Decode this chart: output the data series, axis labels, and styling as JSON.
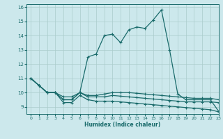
{
  "xlabel": "Humidex (Indice chaleur)",
  "bg_color": "#cce8ec",
  "grid_color": "#aacccc",
  "line_color": "#1a6b6b",
  "xlim": [
    -0.5,
    23
  ],
  "ylim": [
    8.5,
    16.2
  ],
  "xticks": [
    0,
    1,
    2,
    3,
    4,
    5,
    6,
    7,
    8,
    9,
    10,
    11,
    12,
    13,
    14,
    15,
    16,
    17,
    18,
    19,
    20,
    21,
    22,
    23
  ],
  "yticks": [
    9,
    10,
    11,
    12,
    13,
    14,
    15,
    16
  ],
  "series": [
    [
      11.0,
      10.5,
      10.0,
      10.0,
      9.5,
      9.5,
      10.0,
      12.5,
      12.7,
      14.0,
      14.1,
      13.5,
      14.4,
      14.6,
      14.5,
      15.1,
      15.8,
      13.0,
      9.9,
      9.5,
      9.5,
      9.5,
      9.5,
      8.7
    ],
    [
      11.0,
      10.5,
      10.0,
      10.0,
      9.7,
      9.7,
      10.0,
      9.8,
      9.8,
      9.9,
      10.0,
      10.0,
      10.0,
      9.95,
      9.9,
      9.85,
      9.8,
      9.75,
      9.7,
      9.65,
      9.6,
      9.6,
      9.6,
      9.5
    ],
    [
      11.0,
      10.5,
      10.0,
      10.0,
      9.5,
      9.5,
      10.0,
      9.7,
      9.7,
      9.7,
      9.8,
      9.75,
      9.7,
      9.65,
      9.6,
      9.55,
      9.5,
      9.45,
      9.4,
      9.35,
      9.35,
      9.35,
      9.35,
      9.3
    ],
    [
      11.0,
      10.5,
      10.0,
      10.0,
      9.3,
      9.3,
      9.8,
      9.5,
      9.4,
      9.4,
      9.4,
      9.35,
      9.3,
      9.25,
      9.2,
      9.15,
      9.1,
      9.05,
      9.0,
      8.95,
      8.9,
      8.85,
      8.8,
      8.65
    ]
  ]
}
